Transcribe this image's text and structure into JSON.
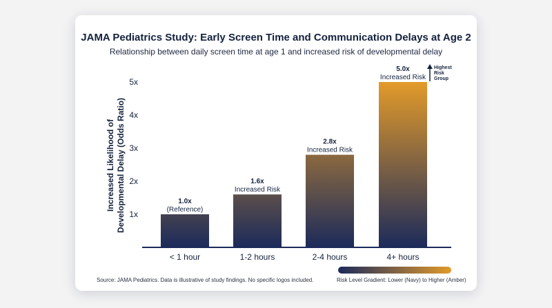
{
  "chart_data": {
    "type": "bar",
    "title": "JAMA Pediatrics Study: Early Screen Time and Communication Delays at Age 2",
    "subtitle": "Relationship between daily screen time at age 1 and increased risk of developmental delay",
    "ylabel": "Increased Likelihood of Developmental Delay (Odds Ratio)",
    "xlabel": "",
    "categories": [
      "< 1 hour",
      "1-2 hours",
      "2-4 hours",
      "4+ hours"
    ],
    "values": [
      1.0,
      1.6,
      2.8,
      5.0
    ],
    "value_labels": [
      "1.0x",
      "1.6x",
      "2.8x",
      "5.0x"
    ],
    "value_sublabels": [
      "(Reference)",
      "Increased Risk",
      "Increased Risk",
      "Increased Risk"
    ],
    "yticks": [
      1,
      2,
      3,
      4,
      5
    ],
    "ytick_labels": [
      "1x",
      "2x",
      "3x",
      "4x",
      "5x"
    ],
    "ylim": [
      0,
      5
    ],
    "annotation": "Highest Risk Group",
    "grid": false,
    "legend": {
      "label": "Risk Level Gradient: Lower (Navy) to Higher (Amber)",
      "placement": "bottom-right"
    },
    "source": "Source: JAMA Pediatrics. Data is illustrative of study findings. No specific logos included.",
    "colors": {
      "low": "#1b2a5b",
      "high": "#e29a2a",
      "text": "#14213d"
    }
  }
}
